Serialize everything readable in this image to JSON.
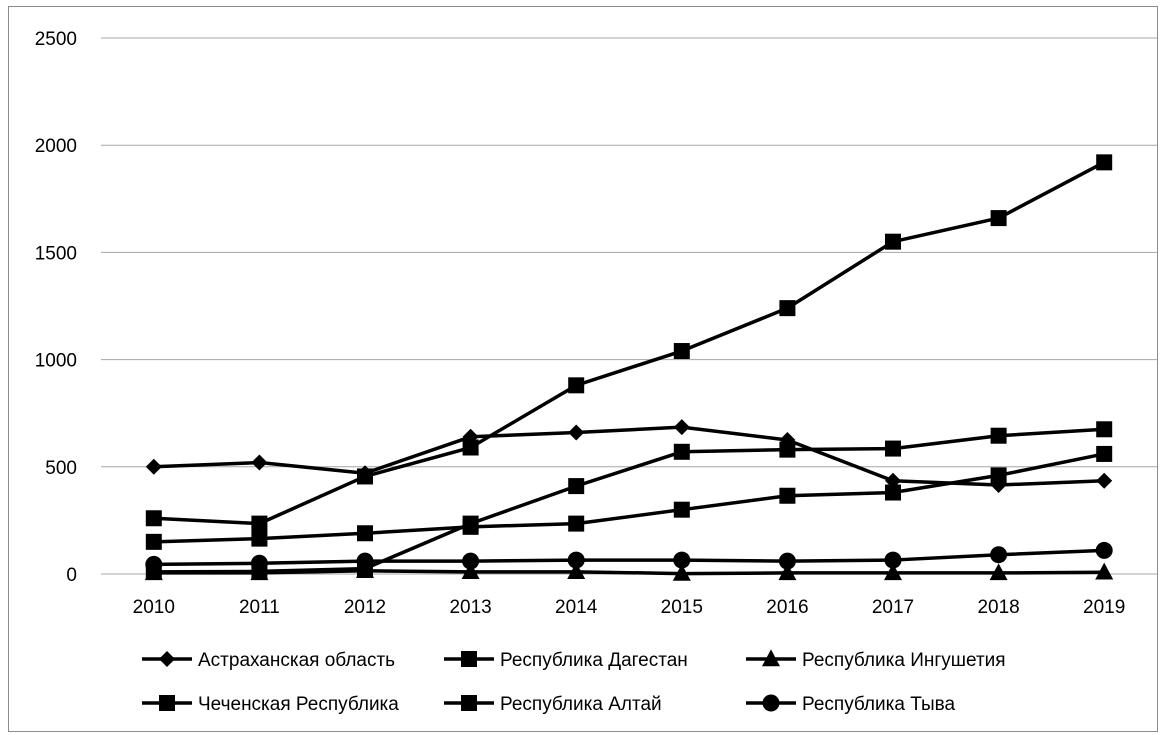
{
  "chart_data": {
    "type": "line",
    "title": "",
    "xlabel": "",
    "ylabel": "",
    "ylim": [
      0,
      2500
    ],
    "yticks": [
      0,
      500,
      1000,
      1500,
      2000,
      2500
    ],
    "grid": "horizontal",
    "legend_position": "bottom",
    "categories": [
      "2010",
      "2011",
      "2012",
      "2013",
      "2014",
      "2015",
      "2016",
      "2017",
      "2018",
      "2019"
    ],
    "series": [
      {
        "name": "Астраханская область",
        "marker": "diamond",
        "values": [
          500,
          520,
          470,
          640,
          660,
          685,
          625,
          435,
          415,
          435
        ]
      },
      {
        "name": "Республика Дагестан",
        "marker": "square",
        "values": [
          260,
          235,
          455,
          590,
          880,
          1040,
          1240,
          1550,
          1660,
          1920
        ]
      },
      {
        "name": "Республика Ингушетия",
        "marker": "triangle",
        "values": [
          5,
          5,
          15,
          10,
          10,
          2,
          5,
          5,
          5,
          8
        ]
      },
      {
        "name": "Чеченская Республика",
        "marker": "square",
        "values": [
          150,
          165,
          190,
          220,
          235,
          300,
          365,
          380,
          460,
          560
        ]
      },
      {
        "name": "Республика Алтай",
        "marker": "square",
        "values": [
          10,
          12,
          25,
          235,
          410,
          570,
          580,
          585,
          645,
          675
        ]
      },
      {
        "name": "Республика Тыва",
        "marker": "circle",
        "values": [
          45,
          50,
          60,
          60,
          65,
          65,
          60,
          65,
          90,
          110
        ]
      }
    ],
    "line_color": "#000000",
    "grid_color": "#a6a6a6"
  }
}
